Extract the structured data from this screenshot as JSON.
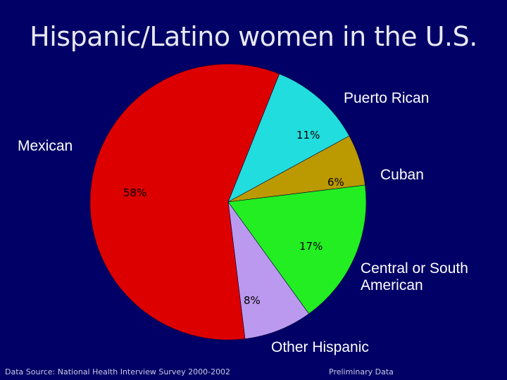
{
  "title": "Hispanic/Latino women in the U.S.",
  "footer": {
    "source": "Data Source:  National Health Interview Survey 2000-2002",
    "note": "Preliminary Data"
  },
  "colors": {
    "background": "#000066",
    "Mexican": "#dd0000",
    "Puerto Rican": "#22dddd",
    "Cuban": "#bb9900",
    "Central or South American": "#22ee22",
    "Other Hispanic": "#bb99ee"
  },
  "chart_data": {
    "type": "pie",
    "title": "Hispanic/Latino women in the U.S.",
    "slices": [
      {
        "label": "Mexican",
        "value": 58,
        "value_label": "58%"
      },
      {
        "label": "Puerto Rican",
        "value": 11,
        "value_label": "11%"
      },
      {
        "label": "Cuban",
        "value": 6,
        "value_label": "6%"
      },
      {
        "label": "Central or South American",
        "value": 17,
        "value_label": "17%"
      },
      {
        "label": "Other Hispanic",
        "value": 8,
        "value_label": "8%"
      }
    ],
    "start_angle_deg": 0,
    "direction": "clockwise",
    "legend": "none"
  }
}
